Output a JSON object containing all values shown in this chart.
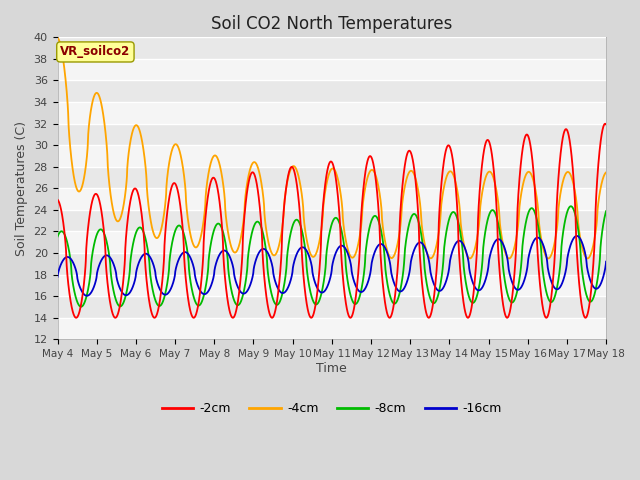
{
  "title": "Soil CO2 North Temperatures",
  "ylabel": "Soil Temperatures (C)",
  "xlabel": "Time",
  "annotation": "VR_soilco2",
  "ylim": [
    12,
    40
  ],
  "yticks": [
    12,
    14,
    16,
    18,
    20,
    22,
    24,
    26,
    28,
    30,
    32,
    34,
    36,
    38,
    40
  ],
  "xtick_labels": [
    "May 4",
    "May 5",
    "May 6",
    "May 7",
    "May 8",
    "May 9",
    "May 10",
    "May 11",
    "May 12",
    "May 13",
    "May 14",
    "May 15",
    "May 16",
    "May 17",
    "May 18"
  ],
  "series_colors": [
    "#ff0000",
    "#ffa500",
    "#00bb00",
    "#0000cc"
  ],
  "series_labels": [
    "-2cm",
    "-4cm",
    "-8cm",
    "-16cm"
  ],
  "fig_facecolor": "#d8d8d8",
  "plot_bg_color": "#e8e8e8",
  "title_fontsize": 12,
  "axis_fontsize": 9,
  "legend_fontsize": 9
}
